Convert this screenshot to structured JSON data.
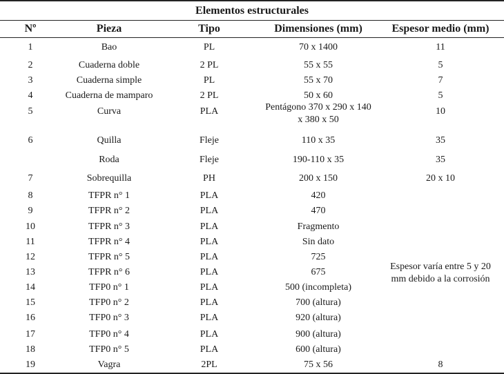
{
  "table": {
    "title": "Elementos estructurales",
    "headers": {
      "num": "Nº",
      "pieza": "Pieza",
      "tipo": "Tipo",
      "dim": "Dimensiones (mm)",
      "esp": "Espesor medio (mm)"
    },
    "rows": [
      {
        "num": "1",
        "pieza": "Bao",
        "tipo": "PL",
        "dim": "70 x 1400",
        "esp": "11"
      },
      {
        "num": "2",
        "pieza": "Cuaderna doble",
        "tipo": "2 PL",
        "dim": "55 x 55",
        "esp": "5"
      },
      {
        "num": "3",
        "pieza": "Cuaderna simple",
        "tipo": "PL",
        "dim": "55 x 70",
        "esp": "7"
      },
      {
        "num": "4",
        "pieza": "Cuaderna de mamparo",
        "tipo": "2 PL",
        "dim": "50 x 60",
        "esp": "5"
      },
      {
        "num": "5",
        "pieza": "Curva",
        "tipo": "PLA",
        "dim_line1": "Pentágono 370 x 290 x 140",
        "dim_line2": "x 380 x 50",
        "esp": "10"
      },
      {
        "num": "6",
        "pieza": "Quilla",
        "tipo": "Fleje",
        "dim": "110 x 35",
        "esp": "35"
      },
      {
        "num": "",
        "pieza": "Roda",
        "tipo": "Fleje",
        "dim": "190-110 x 35",
        "esp": "35"
      },
      {
        "num": "7",
        "pieza": "Sobrequilla",
        "tipo": "PH",
        "dim": "200 x 150",
        "esp": "20 x 10"
      },
      {
        "num": "8",
        "pieza": "TFPR n° 1",
        "tipo": "PLA",
        "dim": "420",
        "esp": ""
      },
      {
        "num": "9",
        "pieza": "TFPR n° 2",
        "tipo": "PLA",
        "dim": "470",
        "esp": ""
      },
      {
        "num": "10",
        "pieza": "TFPR n° 3",
        "tipo": "PLA",
        "dim": "Fragmento",
        "esp": ""
      },
      {
        "num": "11",
        "pieza": "TFPR n° 4",
        "tipo": "PLA",
        "dim": "Sin dato",
        "esp": ""
      },
      {
        "num": "12",
        "pieza": "TFPR n° 5",
        "tipo": "PLA",
        "dim": "725",
        "esp": ""
      },
      {
        "num": "13",
        "pieza": "TFPR n° 6",
        "tipo": "PLA",
        "dim": "675",
        "esp": ""
      },
      {
        "num": "14",
        "pieza": "TFP0 n° 1",
        "tipo": "PLA",
        "dim": "500 (incompleta)",
        "esp": ""
      },
      {
        "num": "15",
        "pieza": "TFP0 n° 2",
        "tipo": "PLA",
        "dim": "700 (altura)",
        "esp": ""
      },
      {
        "num": "16",
        "pieza": "TFP0 n° 3",
        "tipo": "PLA",
        "dim": "920 (altura)",
        "esp": ""
      },
      {
        "num": "17",
        "pieza": "TFP0 n° 4",
        "tipo": "PLA",
        "dim": "900 (altura)",
        "esp": ""
      },
      {
        "num": "18",
        "pieza": "TFP0 n° 5",
        "tipo": "PLA",
        "dim": "600 (altura)",
        "esp": ""
      },
      {
        "num": "19",
        "pieza": "Vagra",
        "tipo": "2PL",
        "dim": "75 x 56",
        "esp": "8"
      }
    ],
    "merged_note_line1": "Espesor varía entre 5 y 20",
    "merged_note_line2": "mm debido a la corrosión"
  }
}
